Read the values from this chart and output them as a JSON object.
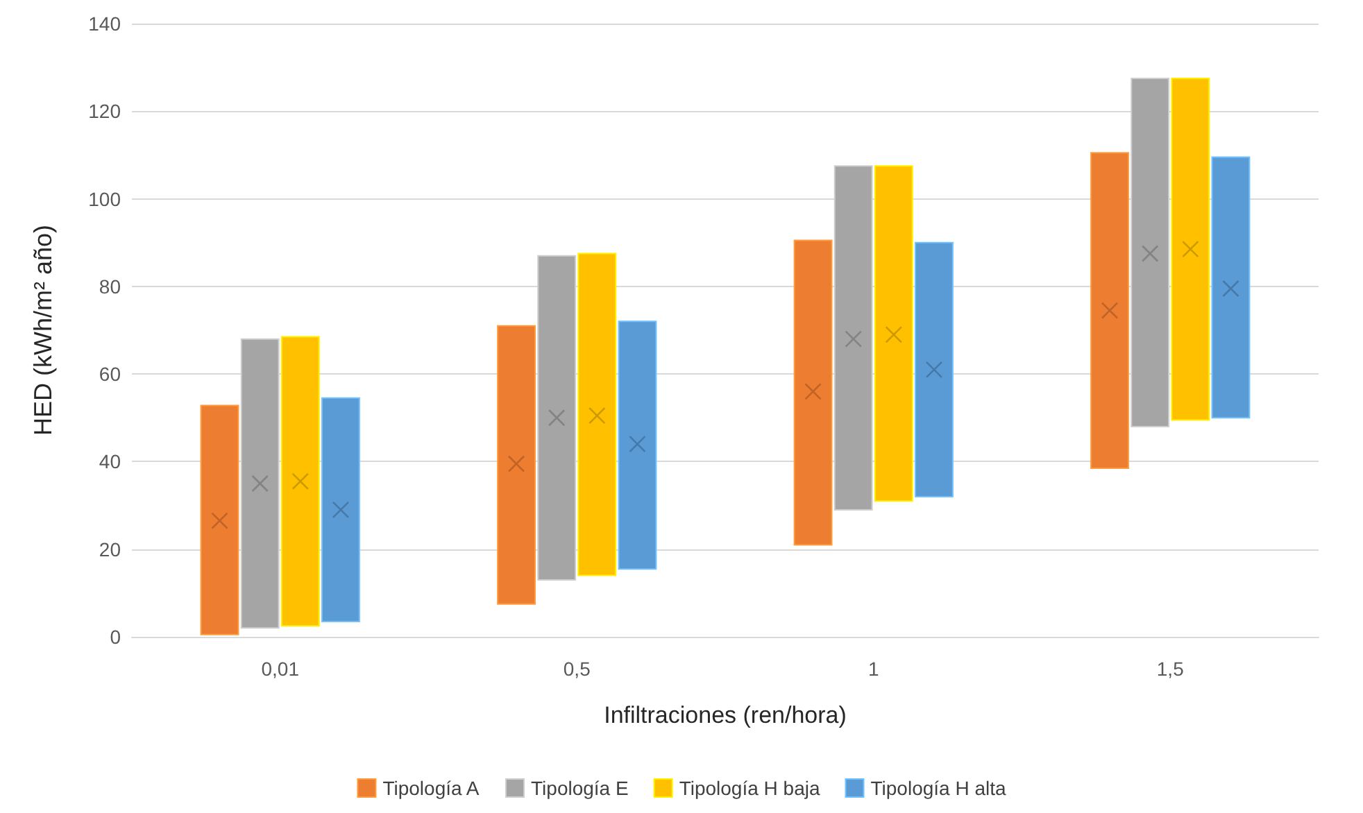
{
  "chart_data": {
    "type": "bar",
    "xlabel": "Infiltraciones (ren/hora)",
    "ylabel": "HED (kWh/m² año)",
    "categories": [
      "0,01",
      "0,5",
      "1",
      "1,5"
    ],
    "ylim": [
      0,
      140
    ],
    "yticks": [
      0,
      20,
      40,
      60,
      80,
      100,
      120,
      140
    ],
    "grid": "y",
    "legend": "bottom",
    "series": [
      {
        "name": "Tipología A",
        "color": "#ed7d31",
        "base": [
          0.5,
          7.5,
          21,
          38.5
        ],
        "values": [
          52.3,
          63.5,
          69.5,
          72
        ]
      },
      {
        "name": "Tipología E",
        "color": "#a5a5a5",
        "base": [
          2,
          13,
          29,
          48
        ],
        "values": [
          66,
          74,
          78.5,
          79.5
        ]
      },
      {
        "name": "Tipología H baja",
        "color": "#ffc000",
        "base": [
          2.5,
          14,
          31,
          49.5
        ],
        "values": [
          66,
          73.5,
          76.5,
          78
        ]
      },
      {
        "name": "Tipología H alta",
        "color": "#5b9bd5",
        "base": [
          3.5,
          15.5,
          32,
          50
        ],
        "values": [
          51,
          56.5,
          58,
          59.5
        ]
      },
      {
        "type": "scatter",
        "marker": "cross",
        "color": "#b35d25",
        "x": [
          "0,01",
          "0,5",
          "1",
          "1,5"
        ],
        "values": [
          26.5,
          39.5,
          56,
          74.5
        ]
      },
      {
        "type": "scatter",
        "marker": "cross",
        "color": "#7a7a7a",
        "x": [
          "0,01",
          "0,5",
          "1",
          "1,5"
        ],
        "values": [
          35,
          50,
          68,
          87.5
        ]
      },
      {
        "type": "scatter",
        "marker": "cross",
        "color": "#bf9000",
        "x": [
          "0,01",
          "0,5",
          "1",
          "1,5"
        ],
        "values": [
          35.5,
          50.5,
          69,
          88.5
        ]
      },
      {
        "type": "scatter",
        "marker": "cross",
        "color": "#41719c",
        "x": [
          "0,01",
          "0,5",
          "1",
          "1,5"
        ],
        "values": [
          29,
          44,
          61,
          79.5
        ]
      }
    ]
  }
}
